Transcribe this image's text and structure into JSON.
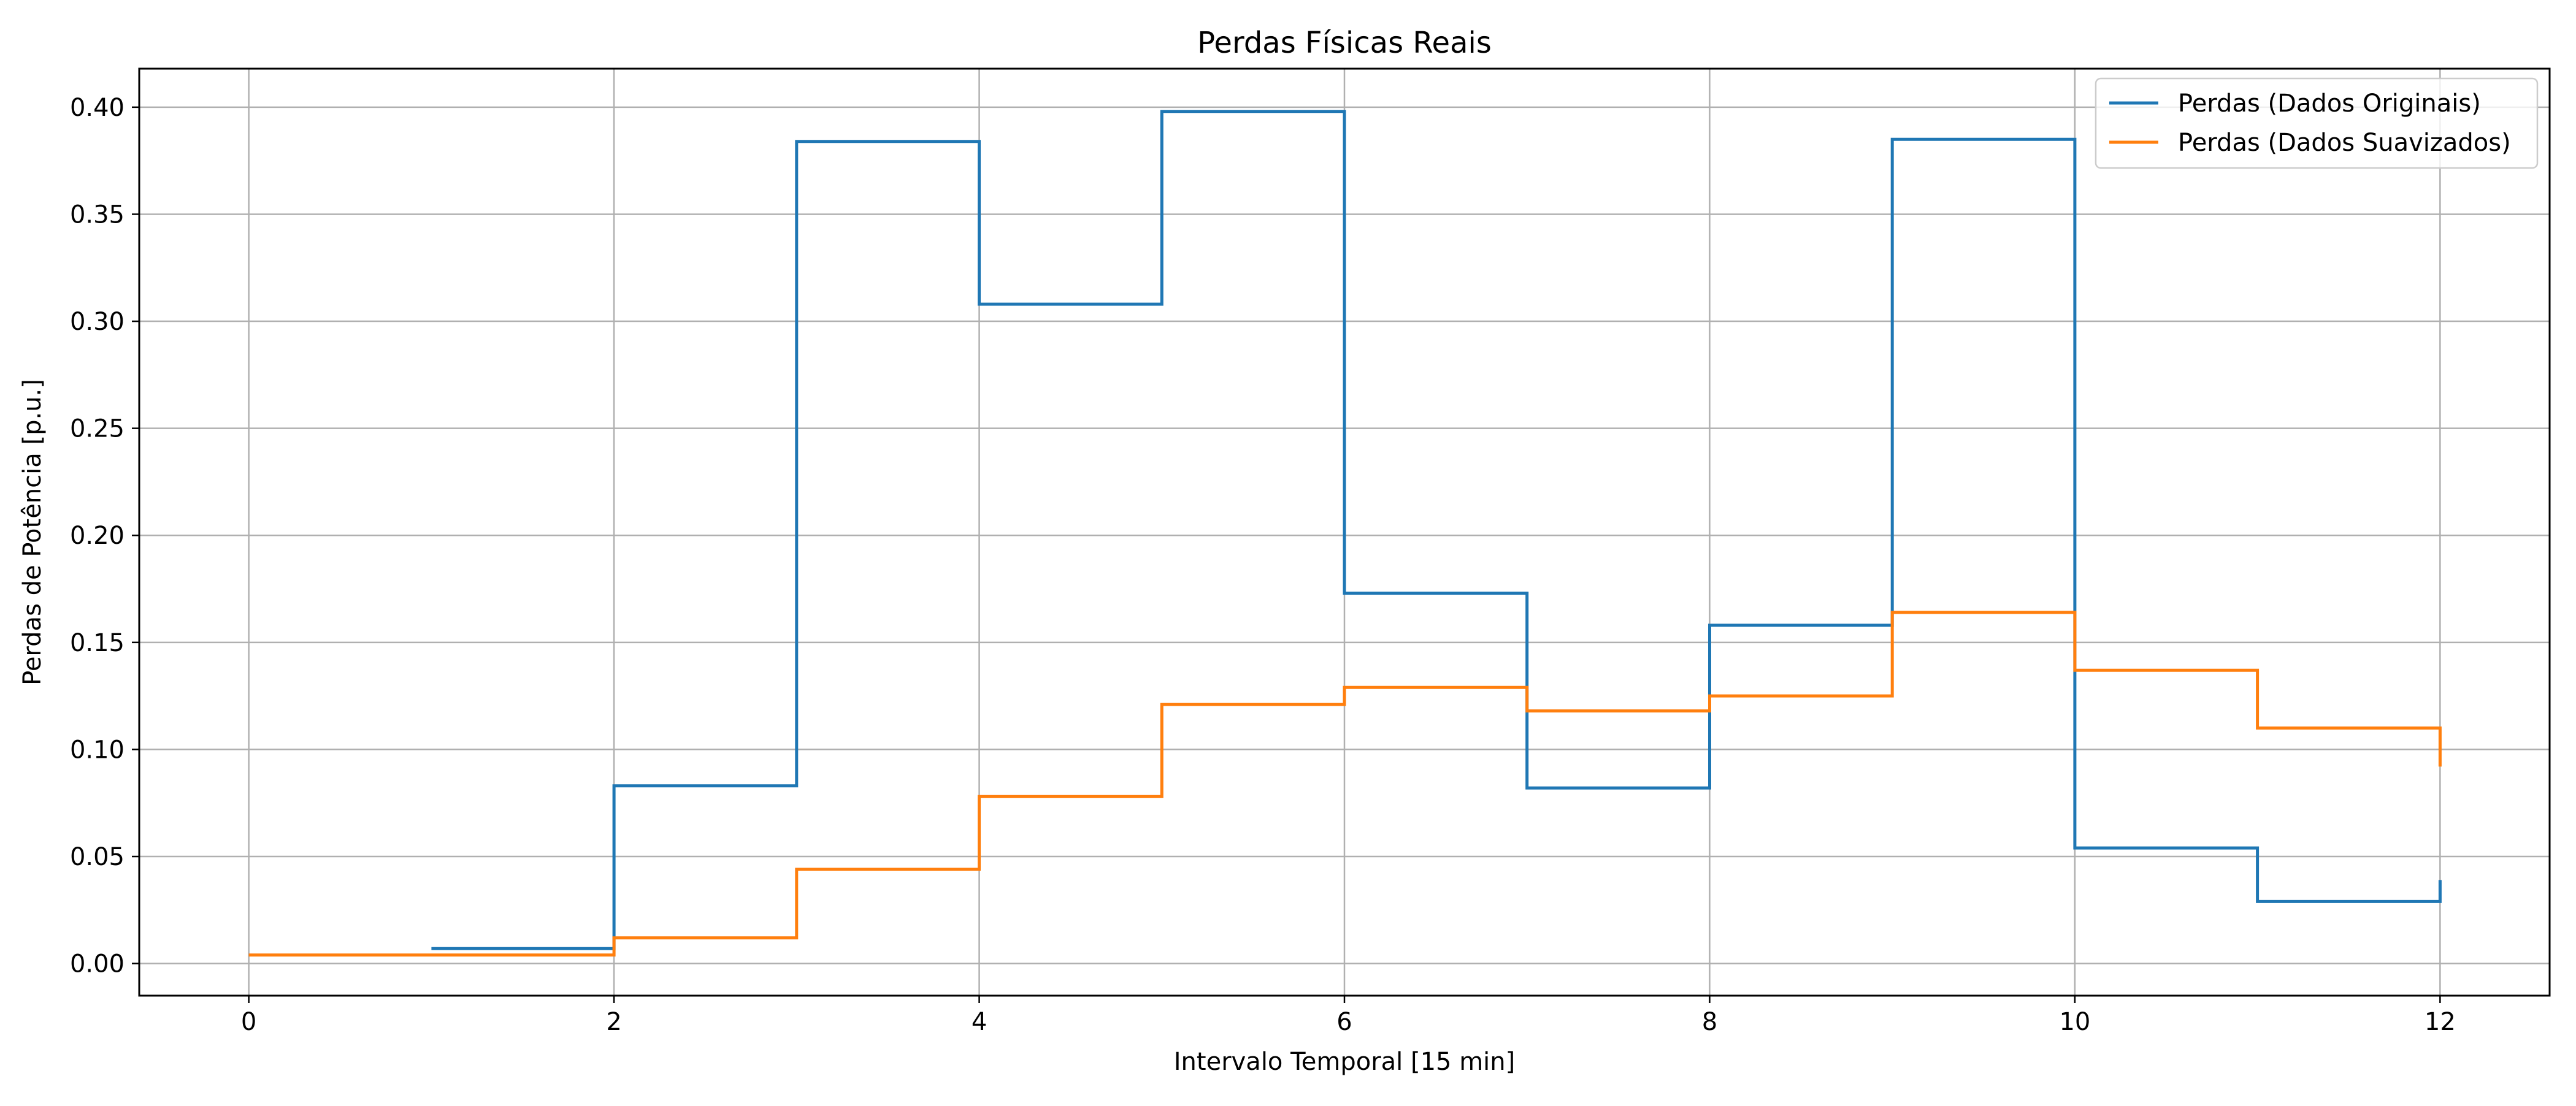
{
  "chart_data": {
    "type": "line",
    "step": "post",
    "title": "Perdas Físicas Reais",
    "xlabel": "Intervalo Temporal [15 min]",
    "ylabel": "Perdas de Potência [p.u.]",
    "xlim": [
      -0.6,
      12.6
    ],
    "ylim": [
      -0.015,
      0.418
    ],
    "xticks": [
      0,
      2,
      4,
      6,
      8,
      10,
      12
    ],
    "xtick_labels": [
      "0",
      "2",
      "4",
      "6",
      "8",
      "10",
      "12"
    ],
    "yticks": [
      0.0,
      0.05,
      0.1,
      0.15,
      0.2,
      0.25,
      0.3,
      0.35,
      0.4
    ],
    "ytick_labels": [
      "0.00",
      "0.05",
      "0.10",
      "0.15",
      "0.20",
      "0.25",
      "0.30",
      "0.35",
      "0.40"
    ],
    "grid": true,
    "legend_position": "top-right",
    "series": [
      {
        "name": "Perdas (Dados Originais)",
        "color": "#1f77b4",
        "x": [
          1,
          2,
          3,
          4,
          5,
          6,
          7,
          8,
          9,
          10,
          11,
          12
        ],
        "y": [
          0.007,
          0.083,
          0.384,
          0.308,
          0.398,
          0.173,
          0.082,
          0.158,
          0.385,
          0.054,
          0.029,
          0.039
        ]
      },
      {
        "name": "Perdas (Dados Suavizados)",
        "color": "#ff7f0e",
        "x": [
          0,
          1,
          2,
          3,
          4,
          5,
          6,
          7,
          8,
          9,
          10,
          11,
          12
        ],
        "y": [
          0.004,
          0.004,
          0.012,
          0.044,
          0.078,
          0.121,
          0.129,
          0.118,
          0.125,
          0.164,
          0.137,
          0.11,
          0.092
        ]
      }
    ]
  }
}
